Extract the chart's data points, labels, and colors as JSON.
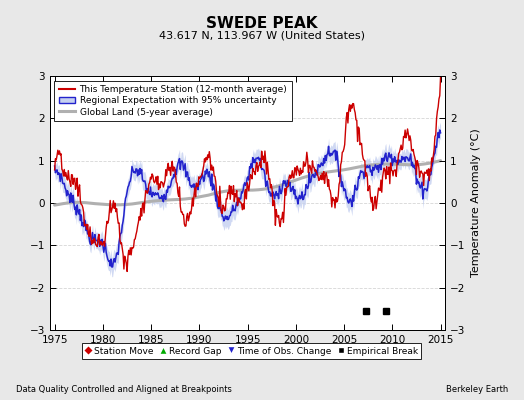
{
  "title": "SWEDE PEAK",
  "subtitle": "43.617 N, 113.967 W (United States)",
  "ylabel": "Temperature Anomaly (°C)",
  "xlabel_left": "Data Quality Controlled and Aligned at Breakpoints",
  "xlabel_right": "Berkeley Earth",
  "ylim": [
    -3,
    3
  ],
  "xlim": [
    1974.5,
    2015.5
  ],
  "xticks": [
    1975,
    1980,
    1985,
    1990,
    1995,
    2000,
    2005,
    2010,
    2015
  ],
  "yticks": [
    -3,
    -2,
    -1,
    0,
    1,
    2,
    3
  ],
  "background_color": "#e8e8e8",
  "plot_bg_color": "#ffffff",
  "grid_color": "#cccccc",
  "empirical_breaks": [
    2007.3,
    2009.3
  ],
  "legend_entries": [
    "This Temperature Station (12-month average)",
    "Regional Expectation with 95% uncertainty",
    "Global Land (5-year average)"
  ],
  "legend_marker_entries": [
    "Station Move",
    "Record Gap",
    "Time of Obs. Change",
    "Empirical Break"
  ]
}
